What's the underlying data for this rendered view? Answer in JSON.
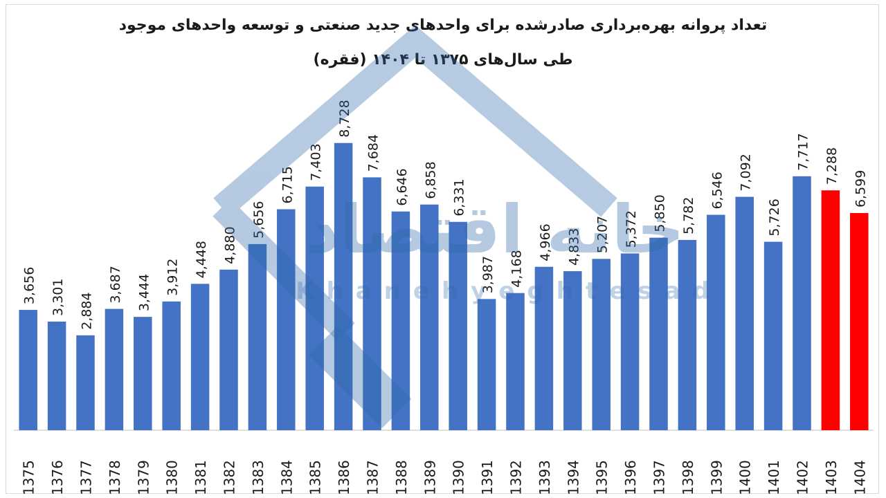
{
  "chart_data": {
    "type": "bar",
    "title": "تعداد پروانه بهره‌برداری صادرشده برای واحدهای جدید صنعتی و توسعه واحدهای موجود",
    "subtitle": "طی سال‌های ۱۳۷۵ تا ۱۴۰۴ (فقره)",
    "categories": [
      "1375",
      "1376",
      "1377",
      "1378",
      "1379",
      "1380",
      "1381",
      "1382",
      "1383",
      "1384",
      "1385",
      "1386",
      "1387",
      "1388",
      "1389",
      "1390",
      "1391",
      "1392",
      "1393",
      "1394",
      "1395",
      "1396",
      "1397",
      "1398",
      "1399",
      "1400",
      "1401",
      "1402",
      "1403",
      "1404"
    ],
    "values": [
      3656,
      3301,
      2884,
      3687,
      3444,
      3912,
      4448,
      4880,
      5656,
      6715,
      7403,
      8728,
      7684,
      6646,
      6858,
      6331,
      3987,
      4168,
      4966,
      4833,
      5207,
      5372,
      5850,
      5782,
      6546,
      7092,
      5726,
      7717,
      7288,
      6599
    ],
    "data_labels": [
      "3,656",
      "3,301",
      "2,884",
      "3,687",
      "3,444",
      "3,912",
      "4,448",
      "4,880",
      "5,656",
      "6,715",
      "7,403",
      "8,728",
      "7,684",
      "6,646",
      "6,858",
      "6,331",
      "3,987",
      "4,168",
      "4,966",
      "4,833",
      "5,207",
      "5,372",
      "5,850",
      "5,782",
      "6,546",
      "7,092",
      "5,726",
      "7,717",
      "7,288",
      "6,599"
    ],
    "highlighted_categories": [
      "1403",
      "1404"
    ],
    "colors": {
      "bar": "#4472C4",
      "highlight": "#FF0000"
    },
    "xlabel": "",
    "ylabel": "",
    "ylim": [
      0,
      9500
    ],
    "grid": false,
    "legend": "none"
  },
  "watermark": {
    "text_fa": "خانه اقتصاد",
    "text_en": "Khanehyeghtesad"
  }
}
